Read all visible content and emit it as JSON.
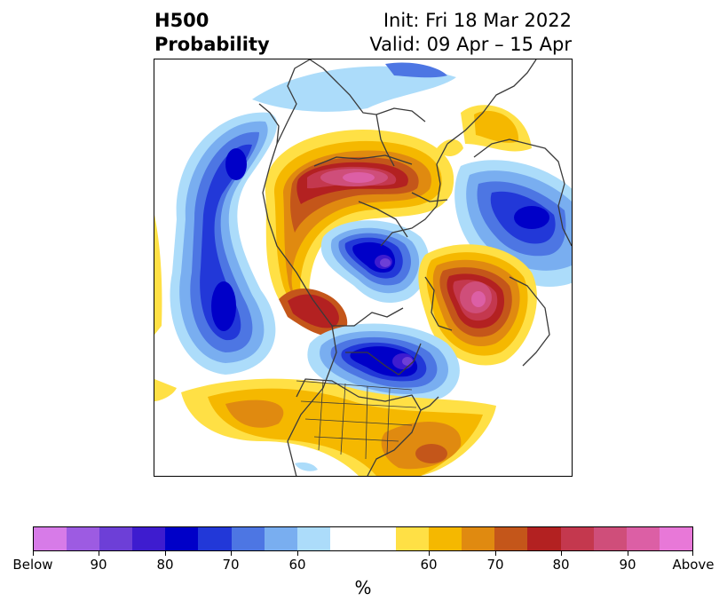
{
  "header": {
    "title_line1": "H500",
    "title_line2": "Probability",
    "init_text": "Init: Fri 18 Mar 2022",
    "valid_text": "Valid: 09 Apr – 15 Apr"
  },
  "map": {
    "projection": "north-polar-stereographic",
    "features": [
      "coastlines",
      "country-borders",
      "us-state-borders"
    ],
    "anomaly_centers": [
      {
        "name": "north-pacific-low",
        "category": "below",
        "peak": "80"
      },
      {
        "name": "central-pacific-low",
        "category": "below",
        "peak": "80"
      },
      {
        "name": "siberia-high",
        "category": "above",
        "peak": "90"
      },
      {
        "name": "arctic-low",
        "category": "below",
        "peak": "85"
      },
      {
        "name": "ural-low",
        "category": "below",
        "peak": "80"
      },
      {
        "name": "greenland-high",
        "category": "above",
        "peak": "85"
      },
      {
        "name": "north-atlantic-high",
        "category": "above",
        "peak": "90"
      },
      {
        "name": "canada-low",
        "category": "below",
        "peak": "90"
      },
      {
        "name": "southeast-us-high",
        "category": "above",
        "peak": "75"
      }
    ]
  },
  "colorbar": {
    "segments": [
      "#d77be8",
      "#9d5be2",
      "#6d3fd7",
      "#3e1ccf",
      "#0000c8",
      "#2238d8",
      "#4d76e3",
      "#79aef0",
      "#acdcfa",
      "#ffffff",
      "#ffffff",
      "#ffe045",
      "#f5b800",
      "#e08a10",
      "#c4561a",
      "#b32121",
      "#c4384e",
      "#cf4e7a",
      "#dc5fa5",
      "#e878d8"
    ],
    "tick_labels": [
      "Below",
      "90",
      "80",
      "70",
      "60",
      "60",
      "70",
      "80",
      "90",
      "Above"
    ],
    "unit": "%"
  }
}
